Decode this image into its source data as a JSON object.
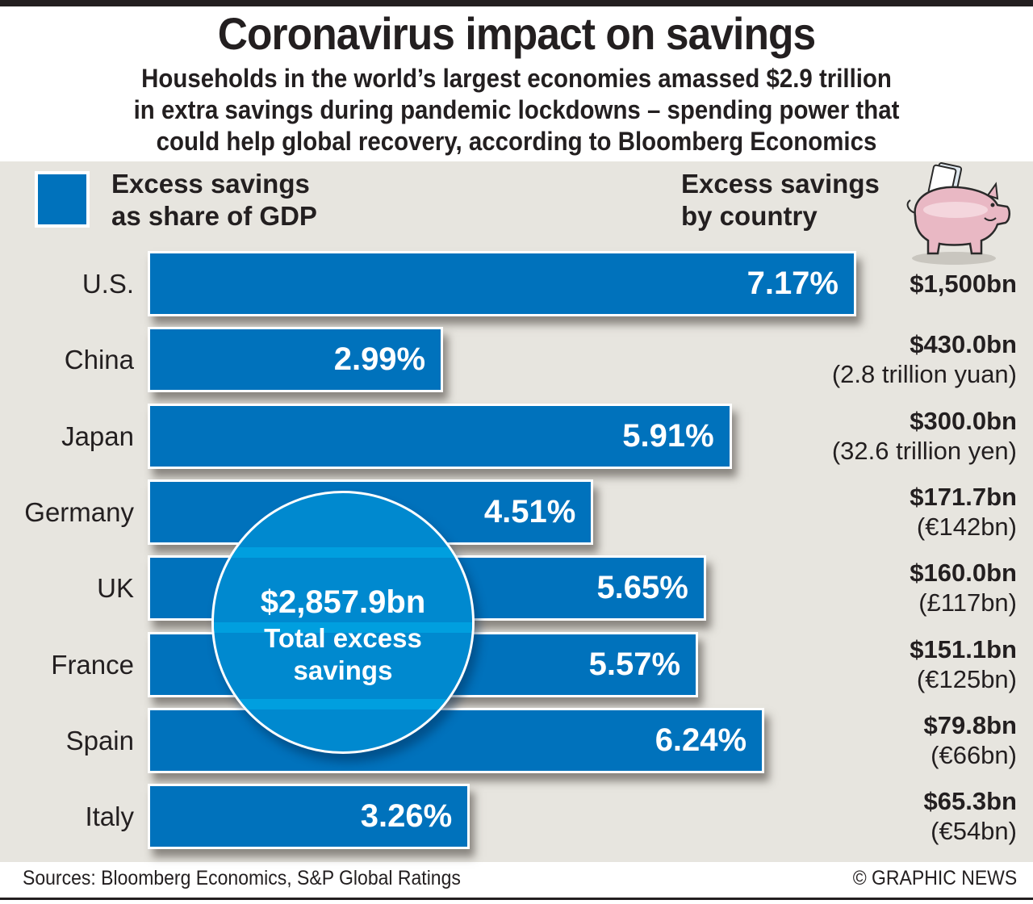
{
  "header": {
    "title": "Coronavirus impact on savings",
    "subtitle_lines": [
      "Households in the world’s largest economies amassed $2.9 trillion",
      "in extra savings during pandemic lockdowns – spending power that",
      "could help global recovery, according to Bloomberg Economics"
    ]
  },
  "legend": {
    "line1": "Excess savings",
    "line2": "as share of GDP",
    "color": "#0072bc"
  },
  "right_header": {
    "line1": "Excess savings",
    "line2": "by country",
    "icon": "piggy-bank-icon"
  },
  "bubble": {
    "value": "$2,857.9bn",
    "line1": "Total excess",
    "line2": "savings"
  },
  "chart_data": {
    "type": "bar",
    "orientation": "horizontal",
    "title": "Excess savings as share of GDP",
    "categories": [
      "U.S.",
      "China",
      "Japan",
      "Germany",
      "UK",
      "France",
      "Spain",
      "Italy"
    ],
    "values": [
      7.17,
      2.99,
      5.91,
      4.51,
      5.65,
      5.57,
      6.24,
      3.26
    ],
    "value_labels": [
      "7.17%",
      "2.99%",
      "5.91%",
      "4.51%",
      "5.65%",
      "5.57%",
      "6.24%",
      "3.26%"
    ],
    "unit": "%",
    "xlim": [
      0,
      7.17
    ],
    "grid": false,
    "bar_color": "#0072bc",
    "secondary": {
      "title": "Excess savings by country",
      "usd": [
        "$1,500bn",
        "$430.0bn",
        "$300.0bn",
        "$171.7bn",
        "$160.0bn",
        "$151.1bn",
        "$79.8bn",
        "$65.3bn"
      ],
      "local": [
        "",
        "(2.8 trillion yuan)",
        "(32.6 trillion yen)",
        "(€142bn)",
        "(£117bn)",
        "(€125bn)",
        "(€66bn)",
        "(€54bn)"
      ]
    },
    "total": "$2,857.9bn"
  },
  "footer": {
    "sources": "Sources: Bloomberg Economics, S&P Global Ratings",
    "credit": "© GRAPHIC NEWS"
  }
}
